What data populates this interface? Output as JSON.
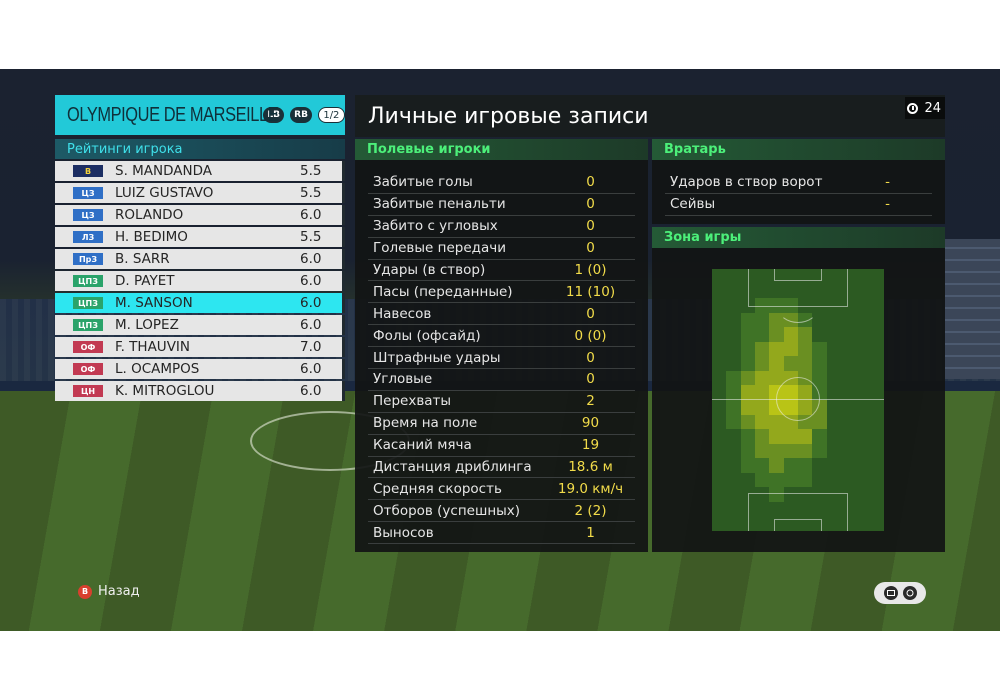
{
  "team": {
    "name": "OLYMPIQUE DE MARSEILLE",
    "lb_label": "LB",
    "rb_label": "RB",
    "page": "1/2"
  },
  "ratings": {
    "title": "Рейтинги игрока",
    "players": [
      {
        "pos": "В",
        "pos_type": "gk",
        "name": "S. MANDANDA",
        "rating": "5.5"
      },
      {
        "pos": "ЦЗ",
        "pos_type": "def",
        "name": "LUIZ GUSTAVO",
        "rating": "5.5"
      },
      {
        "pos": "ЦЗ",
        "pos_type": "def",
        "name": "ROLANDO",
        "rating": "6.0"
      },
      {
        "pos": "ЛЗ",
        "pos_type": "def",
        "name": "H. BEDIMO",
        "rating": "5.5"
      },
      {
        "pos": "ПрЗ",
        "pos_type": "def",
        "name": "B. SARR",
        "rating": "6.0"
      },
      {
        "pos": "ЦПЗ",
        "pos_type": "mid",
        "name": "D. PAYET",
        "rating": "6.0"
      },
      {
        "pos": "ЦПЗ",
        "pos_type": "mid",
        "name": "M. SANSON",
        "rating": "6.0",
        "selected": true
      },
      {
        "pos": "ЦПЗ",
        "pos_type": "mid",
        "name": "M. LOPEZ",
        "rating": "6.0"
      },
      {
        "pos": "ОФ",
        "pos_type": "att",
        "name": "F. THAUVIN",
        "rating": "7.0"
      },
      {
        "pos": "ОФ",
        "pos_type": "att",
        "name": "L. OCAMPOS",
        "rating": "6.0"
      },
      {
        "pos": "ЦН",
        "pos_type": "att",
        "name": "K. MITROGLOU",
        "rating": "6.0"
      }
    ]
  },
  "main": {
    "title": "Личные игровые записи",
    "timer": "24"
  },
  "field_players": {
    "title": "Полевые игроки",
    "stats": [
      {
        "label": "Забитые голы",
        "value": "0"
      },
      {
        "label": "Забитые пенальти",
        "value": "0"
      },
      {
        "label": "Забито с угловых",
        "value": "0"
      },
      {
        "label": "Голевые передачи",
        "value": "0"
      },
      {
        "label": "Удары (в створ)",
        "value": "1 (0)"
      },
      {
        "label": "Пасы (переданные)",
        "value": "11 (10)"
      },
      {
        "label": "Навесов",
        "value": "0"
      },
      {
        "label": "Фолы (офсайд)",
        "value": "0 (0)"
      },
      {
        "label": "Штрафные удары",
        "value": "0"
      },
      {
        "label": "Угловые",
        "value": "0"
      },
      {
        "label": "Перехваты",
        "value": "2"
      },
      {
        "label": "Время на поле",
        "value": "90"
      },
      {
        "label": "Касаний мяча",
        "value": "19"
      },
      {
        "label": "Дистанция дриблинга",
        "value": "18.6 м"
      },
      {
        "label": "Средняя скорость",
        "value": "19.0 км/ч"
      },
      {
        "label": "Отборов (успешных)",
        "value": "2 (2)"
      },
      {
        "label": "Выносов",
        "value": "1"
      }
    ]
  },
  "goalkeeper": {
    "title": "Вратарь",
    "stats": [
      {
        "label": "Ударов в створ ворот",
        "value": "-"
      },
      {
        "label": "Сейвы",
        "value": "-"
      }
    ]
  },
  "zone": {
    "title": "Зона игры"
  },
  "footer": {
    "back_label": "Назад",
    "back_icon": "B"
  }
}
